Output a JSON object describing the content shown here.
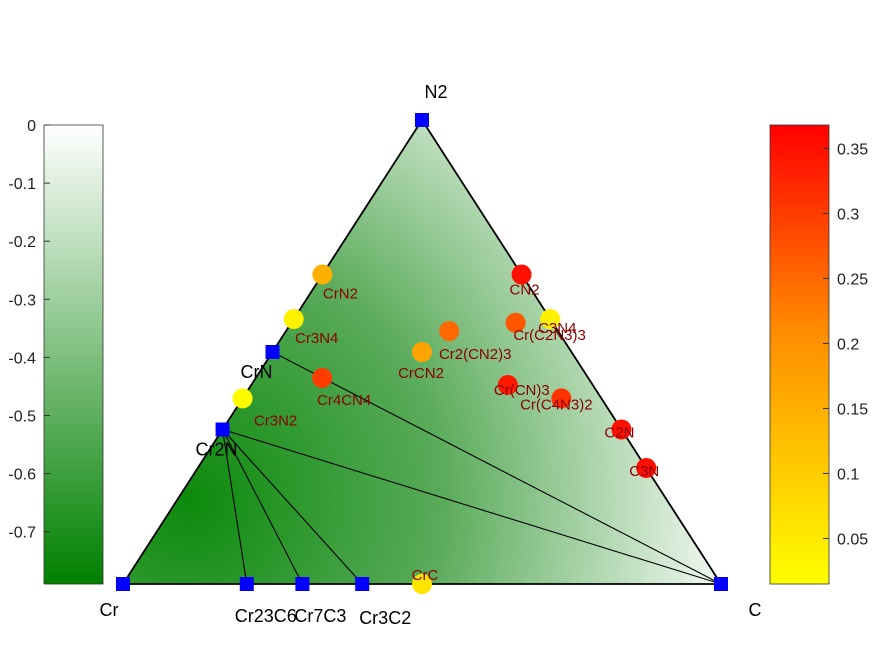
{
  "chart_data": {
    "type": "ternary-phase-diagram",
    "vertices": [
      {
        "name": "Cr",
        "label": "Cr"
      },
      {
        "name": "N2",
        "label": "N2"
      },
      {
        "name": "C",
        "label": "C"
      }
    ],
    "stable_phases": [
      {
        "id": "Cr",
        "label": "Cr",
        "frac_N": 0,
        "frac_C": 0
      },
      {
        "id": "N2",
        "label": "N2",
        "frac_N": 1,
        "frac_C": 0
      },
      {
        "id": "C",
        "label": "C",
        "frac_N": 0,
        "frac_C": 1
      },
      {
        "id": "CrN",
        "label": "CrN",
        "frac_N": 0.5,
        "frac_C": 0
      },
      {
        "id": "Cr2N",
        "label": "Cr2N",
        "frac_N": 0.333,
        "frac_C": 0
      },
      {
        "id": "Cr23C6",
        "label": "Cr23C6",
        "frac_N": 0,
        "frac_C": 0.207
      },
      {
        "id": "Cr7C3",
        "label": "Cr7C3",
        "frac_N": 0,
        "frac_C": 0.3
      },
      {
        "id": "Cr3C2",
        "label": "Cr3C2",
        "frac_N": 0,
        "frac_C": 0.4
      }
    ],
    "tie_lines": [
      [
        "Cr",
        "N2"
      ],
      [
        "N2",
        "C"
      ],
      [
        "Cr",
        "C"
      ],
      [
        "CrN",
        "C"
      ],
      [
        "Cr2N",
        "C"
      ],
      [
        "Cr2N",
        "Cr23C6"
      ],
      [
        "Cr2N",
        "Cr7C3"
      ],
      [
        "Cr2N",
        "Cr3C2"
      ]
    ],
    "unstable_phases": [
      {
        "label": "CrN2",
        "frac_N": 0.667,
        "frac_C": 0,
        "e_above_hull": 0.15
      },
      {
        "label": "Cr3N4",
        "frac_N": 0.571,
        "frac_C": 0,
        "e_above_hull": 0.04
      },
      {
        "label": "Cr3N2",
        "frac_N": 0.4,
        "frac_C": 0,
        "e_above_hull": 0.02
      },
      {
        "label": "Cr4CN4",
        "frac_N": 0.444,
        "frac_C": 0.111,
        "e_above_hull": 0.3
      },
      {
        "label": "CrCN2",
        "frac_N": 0.5,
        "frac_C": 0.25,
        "e_above_hull": 0.17
      },
      {
        "label": "Cr2(CN2)3",
        "frac_N": 0.545,
        "frac_C": 0.273,
        "e_above_hull": 0.25
      },
      {
        "label": "CN2",
        "frac_N": 0.667,
        "frac_C": 0.333,
        "e_above_hull": 0.35
      },
      {
        "label": "C3N4",
        "frac_N": 0.571,
        "frac_C": 0.429,
        "e_above_hull": 0.04
      },
      {
        "label": "Cr(C2N3)3",
        "frac_N": 0.563,
        "frac_C": 0.375,
        "e_above_hull": 0.27
      },
      {
        "label": "Cr(CN)3",
        "frac_N": 0.429,
        "frac_C": 0.429,
        "e_above_hull": 0.34
      },
      {
        "label": "Cr(C4N3)2",
        "frac_N": 0.4,
        "frac_C": 0.533,
        "e_above_hull": 0.31
      },
      {
        "label": "C2N",
        "frac_N": 0.333,
        "frac_C": 0.667,
        "e_above_hull": 0.35
      },
      {
        "label": "C3N",
        "frac_N": 0.25,
        "frac_C": 0.75,
        "e_above_hull": 0.35
      },
      {
        "label": "CrC",
        "frac_N": 0,
        "frac_C": 0.5,
        "e_above_hull": 0.06
      }
    ],
    "left_colorbar": {
      "range": [
        -0.79,
        0
      ],
      "ticks": [
        "0",
        "-0.1",
        "-0.2",
        "-0.3",
        "-0.4",
        "-0.5",
        "-0.6",
        "-0.7"
      ],
      "tick_values": [
        0,
        -0.1,
        -0.2,
        -0.3,
        -0.4,
        -0.5,
        -0.6,
        -0.7
      ],
      "colors": [
        "#ffffff",
        "#008000"
      ]
    },
    "right_colorbar": {
      "range": [
        0.015,
        0.368
      ],
      "ticks": [
        "0.35",
        "0.3",
        "0.25",
        "0.2",
        "0.15",
        "0.1",
        "0.05"
      ],
      "tick_values": [
        0.35,
        0.3,
        0.25,
        0.2,
        0.15,
        0.1,
        0.05
      ],
      "colors": [
        "#ffff00",
        "#ff0000"
      ]
    },
    "colors": {
      "stable_marker": "#0000ff",
      "phase_label": "#8b0000",
      "tie_line": "#000000"
    }
  }
}
